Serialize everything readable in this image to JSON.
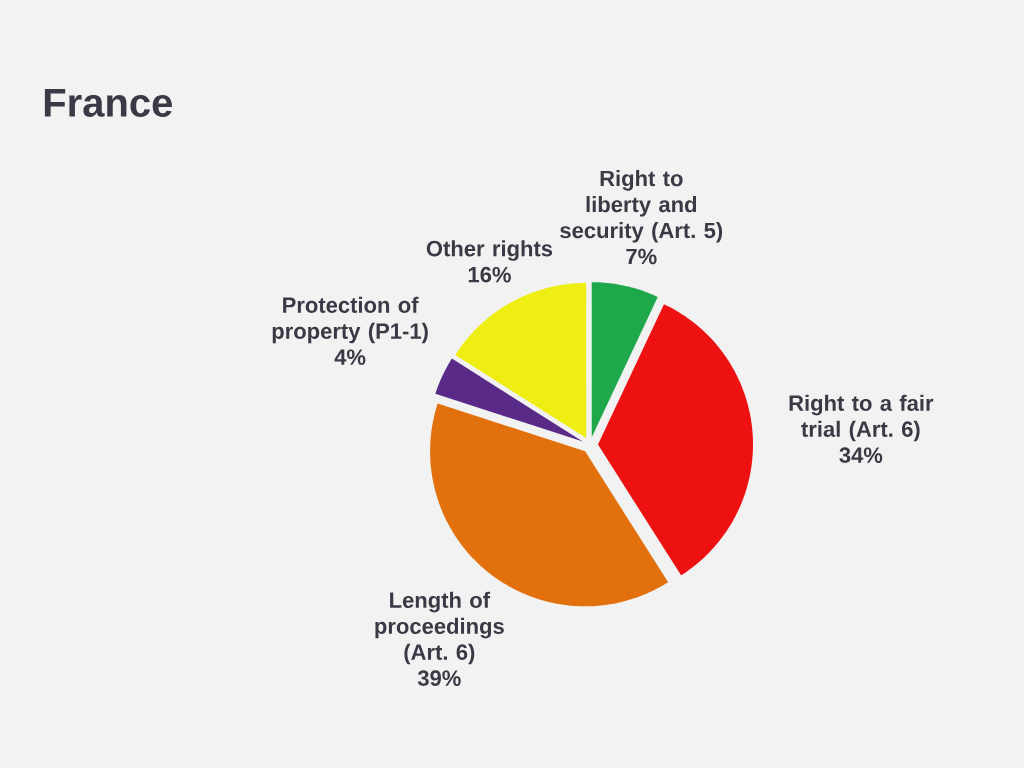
{
  "chart_data": {
    "type": "pie",
    "title": "France",
    "categories": [
      "Right to liberty and security (Art. 5)",
      "Right to a fair trial (Art. 6)",
      "Length of proceedings (Art. 6)",
      "Protection of property (P1-1)",
      "Other rights"
    ],
    "values": [
      7,
      34,
      39,
      4,
      16
    ],
    "value_labels": [
      "7%",
      "34%",
      "39%",
      "4%",
      "16%"
    ],
    "colors": [
      "#1ea84b",
      "#ee1111",
      "#e2700c",
      "#5a2a88",
      "#eeee12"
    ]
  }
}
